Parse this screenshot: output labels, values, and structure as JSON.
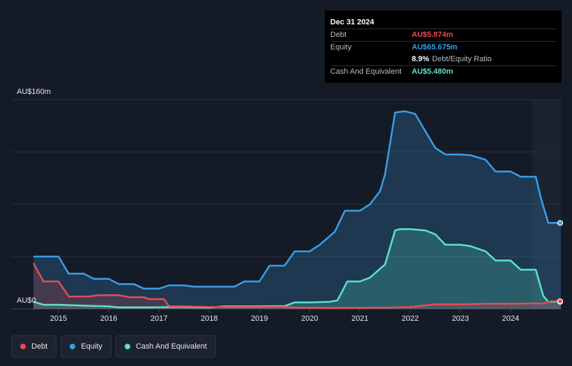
{
  "tooltip": {
    "date": "Dec 31 2024",
    "debt_label": "Debt",
    "debt_value": "AU$5.874m",
    "equity_label": "Equity",
    "equity_value": "AU$65.675m",
    "ratio_value": "8.9%",
    "ratio_label": "Debt/Equity Ratio",
    "cash_label": "Cash And Equivalent",
    "cash_value": "AU$5.480m"
  },
  "legend": {
    "debt": "Debt",
    "equity": "Equity",
    "cash": "Cash And Equivalent"
  },
  "colors": {
    "debt": "#e64c55",
    "equity": "#3a9ee8",
    "cash": "#5be3c8"
  },
  "chart_data": {
    "type": "area",
    "ylim": [
      0,
      160
    ],
    "xlim": [
      2014.5,
      2025.0
    ],
    "y_tick_labels": [
      "AU$0",
      "AU$160m"
    ],
    "x_ticks": [
      "2015",
      "2016",
      "2017",
      "2018",
      "2019",
      "2020",
      "2021",
      "2022",
      "2023",
      "2024"
    ],
    "series": [
      {
        "name": "Debt",
        "points": [
          [
            2014.5,
            35
          ],
          [
            2014.7,
            21
          ],
          [
            2015.0,
            21
          ],
          [
            2015.2,
            9.5
          ],
          [
            2015.6,
            9.5
          ],
          [
            2015.8,
            10.5
          ],
          [
            2016.2,
            10.5
          ],
          [
            2016.4,
            9
          ],
          [
            2016.7,
            9
          ],
          [
            2016.8,
            7.5
          ],
          [
            2017.1,
            7.5
          ],
          [
            2017.2,
            2
          ],
          [
            2017.5,
            2
          ],
          [
            2018.0,
            1.5
          ],
          [
            2019.0,
            1.5
          ],
          [
            2019.5,
            1.5
          ],
          [
            2019.7,
            1
          ],
          [
            2020.5,
            0.8
          ],
          [
            2021.5,
            1
          ],
          [
            2022.0,
            1.5
          ],
          [
            2022.5,
            3.5
          ],
          [
            2023.0,
            3.5
          ],
          [
            2023.5,
            4
          ],
          [
            2024.0,
            4
          ],
          [
            2024.5,
            4.2
          ],
          [
            2024.65,
            4.2
          ],
          [
            2024.8,
            5.874
          ],
          [
            2025.0,
            5.874
          ]
        ]
      },
      {
        "name": "Equity",
        "points": [
          [
            2014.5,
            40
          ],
          [
            2015.0,
            40
          ],
          [
            2015.2,
            27
          ],
          [
            2015.5,
            27
          ],
          [
            2015.7,
            23
          ],
          [
            2016.0,
            23
          ],
          [
            2016.2,
            19
          ],
          [
            2016.5,
            19
          ],
          [
            2016.7,
            15.5
          ],
          [
            2017.0,
            15.5
          ],
          [
            2017.2,
            18
          ],
          [
            2017.5,
            18
          ],
          [
            2017.7,
            17
          ],
          [
            2018.2,
            17
          ],
          [
            2018.5,
            17
          ],
          [
            2018.7,
            21
          ],
          [
            2019.0,
            21
          ],
          [
            2019.2,
            33
          ],
          [
            2019.5,
            33
          ],
          [
            2019.7,
            44
          ],
          [
            2020.0,
            44
          ],
          [
            2020.2,
            49
          ],
          [
            2020.5,
            59
          ],
          [
            2020.7,
            75
          ],
          [
            2021.0,
            75
          ],
          [
            2021.2,
            80
          ],
          [
            2021.4,
            90
          ],
          [
            2021.5,
            103
          ],
          [
            2021.7,
            150
          ],
          [
            2021.9,
            151
          ],
          [
            2022.1,
            149
          ],
          [
            2022.3,
            136
          ],
          [
            2022.5,
            123
          ],
          [
            2022.7,
            118
          ],
          [
            2023.0,
            118
          ],
          [
            2023.2,
            117.5
          ],
          [
            2023.5,
            114
          ],
          [
            2023.7,
            105
          ],
          [
            2024.0,
            105
          ],
          [
            2024.2,
            101
          ],
          [
            2024.5,
            101
          ],
          [
            2024.6,
            85
          ],
          [
            2024.75,
            65.675
          ],
          [
            2025.0,
            65.675
          ]
        ]
      },
      {
        "name": "Cash And Equivalent",
        "points": [
          [
            2014.5,
            5.5
          ],
          [
            2014.7,
            3.2
          ],
          [
            2015.0,
            3.2
          ],
          [
            2015.5,
            2.5
          ],
          [
            2016.0,
            2.0
          ],
          [
            2016.2,
            1.2
          ],
          [
            2016.8,
            1.2
          ],
          [
            2017.5,
            1.5
          ],
          [
            2018.0,
            1
          ],
          [
            2018.3,
            2
          ],
          [
            2019.0,
            2
          ],
          [
            2019.5,
            2.2
          ],
          [
            2019.7,
            5
          ],
          [
            2020.0,
            5
          ],
          [
            2020.4,
            5.5
          ],
          [
            2020.55,
            6.5
          ],
          [
            2020.75,
            21
          ],
          [
            2021.0,
            21
          ],
          [
            2021.2,
            24
          ],
          [
            2021.5,
            34
          ],
          [
            2021.7,
            60
          ],
          [
            2021.8,
            61
          ],
          [
            2022.0,
            61
          ],
          [
            2022.3,
            60
          ],
          [
            2022.5,
            57
          ],
          [
            2022.7,
            49
          ],
          [
            2023.0,
            49
          ],
          [
            2023.2,
            48
          ],
          [
            2023.5,
            44
          ],
          [
            2023.7,
            37
          ],
          [
            2024.0,
            37
          ],
          [
            2024.2,
            30
          ],
          [
            2024.5,
            30
          ],
          [
            2024.65,
            10
          ],
          [
            2024.75,
            5.48
          ],
          [
            2025.0,
            5.48
          ]
        ]
      }
    ]
  }
}
